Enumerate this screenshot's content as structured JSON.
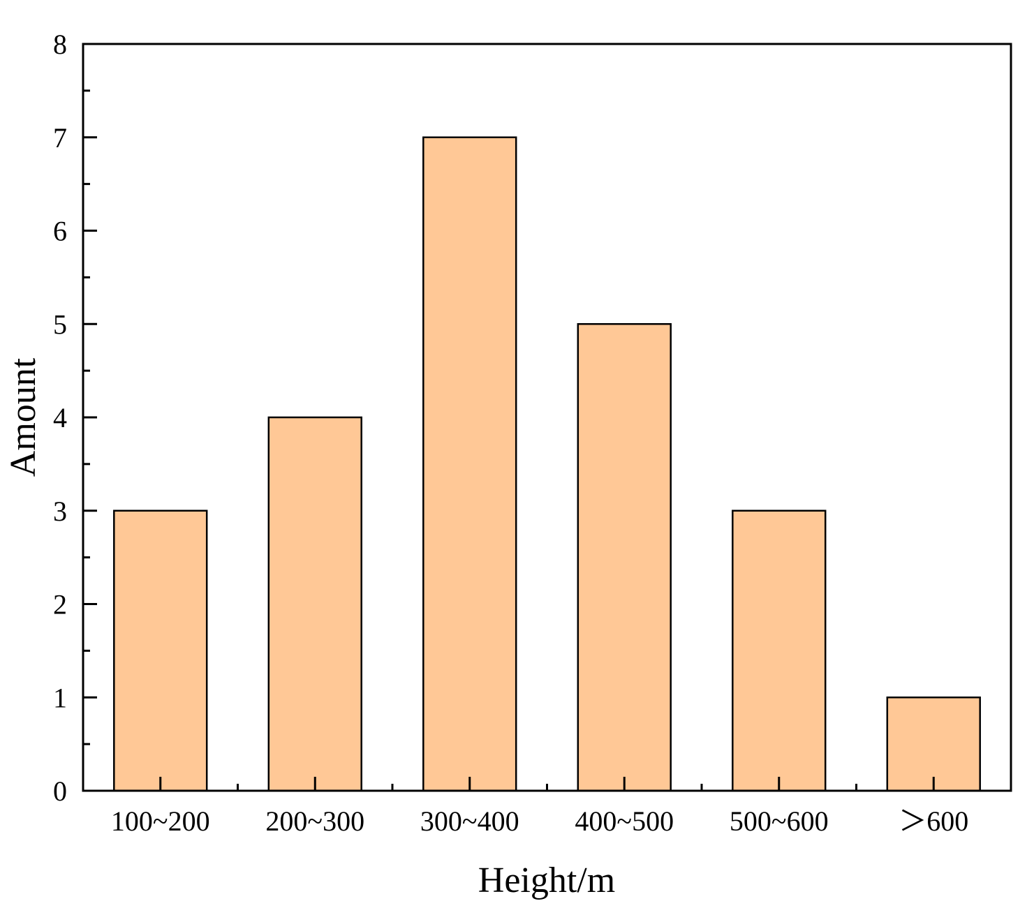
{
  "chart_data": {
    "type": "bar",
    "title": "",
    "xlabel": "Height/m",
    "ylabel": "Amount",
    "categories": [
      "100~200",
      "200~300",
      "300~400",
      "400~500",
      "500~600",
      "＞600"
    ],
    "values": [
      3,
      4,
      7,
      5,
      3,
      1
    ],
    "ylim": [
      0,
      8
    ],
    "yticks": [
      "0",
      "1",
      "2",
      "3",
      "4",
      "5",
      "6",
      "7",
      "8"
    ],
    "grid": false,
    "legend": "none",
    "colors": {
      "bar_fill": "#FFC896",
      "bar_stroke": "#000000",
      "axis": "#000000"
    }
  }
}
